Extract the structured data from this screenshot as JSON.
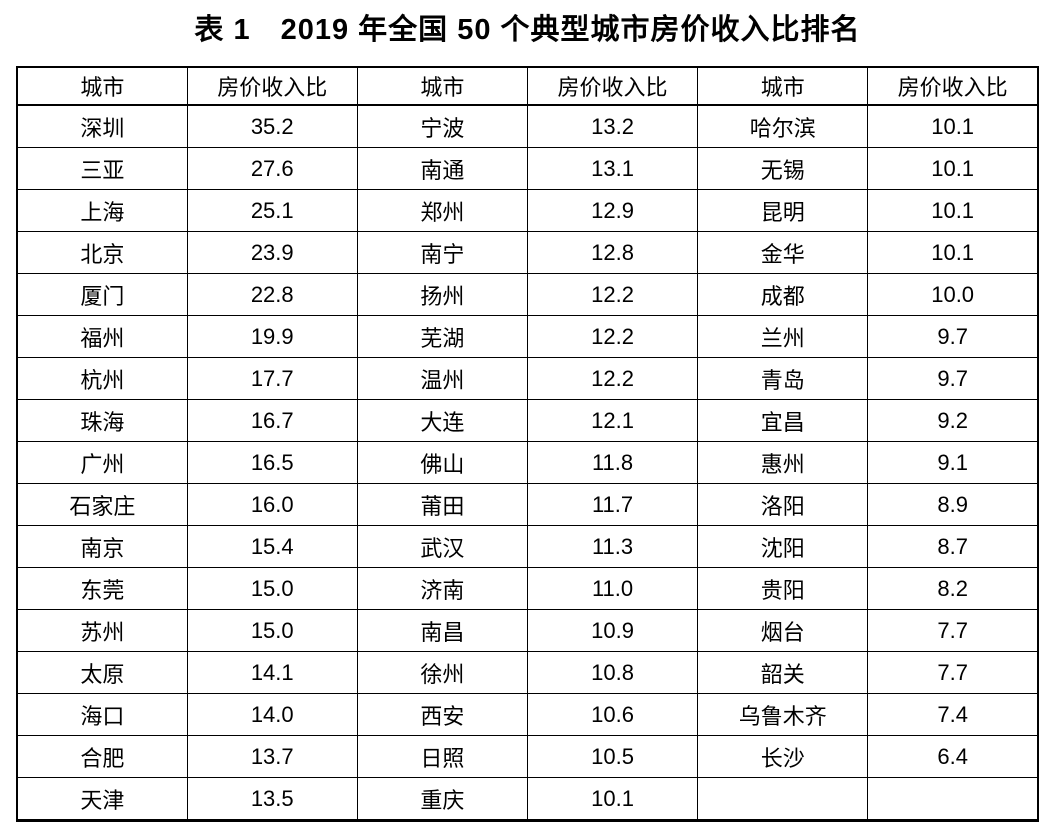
{
  "page": {
    "title": "表 1　2019 年全国 50 个典型城市房价收入比排名"
  },
  "colors": {
    "text": "#000000",
    "background": "#ffffff",
    "border": "#000000"
  },
  "table": {
    "headers": [
      "城市",
      "房价收入比",
      "城市",
      "房价收入比",
      "城市",
      "房价收入比"
    ],
    "rows": [
      [
        "深圳",
        "35.2",
        "宁波",
        "13.2",
        "哈尔滨",
        "10.1"
      ],
      [
        "三亚",
        "27.6",
        "南通",
        "13.1",
        "无锡",
        "10.1"
      ],
      [
        "上海",
        "25.1",
        "郑州",
        "12.9",
        "昆明",
        "10.1"
      ],
      [
        "北京",
        "23.9",
        "南宁",
        "12.8",
        "金华",
        "10.1"
      ],
      [
        "厦门",
        "22.8",
        "扬州",
        "12.2",
        "成都",
        "10.0"
      ],
      [
        "福州",
        "19.9",
        "芜湖",
        "12.2",
        "兰州",
        "9.7"
      ],
      [
        "杭州",
        "17.7",
        "温州",
        "12.2",
        "青岛",
        "9.7"
      ],
      [
        "珠海",
        "16.7",
        "大连",
        "12.1",
        "宜昌",
        "9.2"
      ],
      [
        "广州",
        "16.5",
        "佛山",
        "11.8",
        "惠州",
        "9.1"
      ],
      [
        "石家庄",
        "16.0",
        "莆田",
        "11.7",
        "洛阳",
        "8.9"
      ],
      [
        "南京",
        "15.4",
        "武汉",
        "11.3",
        "沈阳",
        "8.7"
      ],
      [
        "东莞",
        "15.0",
        "济南",
        "11.0",
        "贵阳",
        "8.2"
      ],
      [
        "苏州",
        "15.0",
        "南昌",
        "10.9",
        "烟台",
        "7.7"
      ],
      [
        "太原",
        "14.1",
        "徐州",
        "10.8",
        "韶关",
        "7.7"
      ],
      [
        "海口",
        "14.0",
        "西安",
        "10.6",
        "乌鲁木齐",
        "7.4"
      ],
      [
        "合肥",
        "13.7",
        "日照",
        "10.5",
        "长沙",
        "6.4"
      ],
      [
        "天津",
        "13.5",
        "重庆",
        "10.1",
        "",
        ""
      ]
    ]
  },
  "chart_data": {
    "type": "table",
    "title": "表 1　2019 年全国 50 个典型城市房价收入比排名",
    "columns": [
      "城市",
      "房价收入比"
    ],
    "records": [
      {
        "城市": "深圳",
        "房价收入比": 35.2
      },
      {
        "城市": "三亚",
        "房价收入比": 27.6
      },
      {
        "城市": "上海",
        "房价收入比": 25.1
      },
      {
        "城市": "北京",
        "房价收入比": 23.9
      },
      {
        "城市": "厦门",
        "房价收入比": 22.8
      },
      {
        "城市": "福州",
        "房价收入比": 19.9
      },
      {
        "城市": "杭州",
        "房价收入比": 17.7
      },
      {
        "城市": "珠海",
        "房价收入比": 16.7
      },
      {
        "城市": "广州",
        "房价收入比": 16.5
      },
      {
        "城市": "石家庄",
        "房价收入比": 16.0
      },
      {
        "城市": "南京",
        "房价收入比": 15.4
      },
      {
        "城市": "东莞",
        "房价收入比": 15.0
      },
      {
        "城市": "苏州",
        "房价收入比": 15.0
      },
      {
        "城市": "太原",
        "房价收入比": 14.1
      },
      {
        "城市": "海口",
        "房价收入比": 14.0
      },
      {
        "城市": "合肥",
        "房价收入比": 13.7
      },
      {
        "城市": "天津",
        "房价收入比": 13.5
      },
      {
        "城市": "宁波",
        "房价收入比": 13.2
      },
      {
        "城市": "南通",
        "房价收入比": 13.1
      },
      {
        "城市": "郑州",
        "房价收入比": 12.9
      },
      {
        "城市": "南宁",
        "房价收入比": 12.8
      },
      {
        "城市": "扬州",
        "房价收入比": 12.2
      },
      {
        "城市": "芜湖",
        "房价收入比": 12.2
      },
      {
        "城市": "温州",
        "房价收入比": 12.2
      },
      {
        "城市": "大连",
        "房价收入比": 12.1
      },
      {
        "城市": "佛山",
        "房价收入比": 11.8
      },
      {
        "城市": "莆田",
        "房价收入比": 11.7
      },
      {
        "城市": "武汉",
        "房价收入比": 11.3
      },
      {
        "城市": "济南",
        "房价收入比": 11.0
      },
      {
        "城市": "南昌",
        "房价收入比": 10.9
      },
      {
        "城市": "徐州",
        "房价收入比": 10.8
      },
      {
        "城市": "西安",
        "房价收入比": 10.6
      },
      {
        "城市": "日照",
        "房价收入比": 10.5
      },
      {
        "城市": "重庆",
        "房价收入比": 10.1
      },
      {
        "城市": "哈尔滨",
        "房价收入比": 10.1
      },
      {
        "城市": "无锡",
        "房价收入比": 10.1
      },
      {
        "城市": "昆明",
        "房价收入比": 10.1
      },
      {
        "城市": "金华",
        "房价收入比": 10.1
      },
      {
        "城市": "成都",
        "房价收入比": 10.0
      },
      {
        "城市": "兰州",
        "房价收入比": 9.7
      },
      {
        "城市": "青岛",
        "房价收入比": 9.7
      },
      {
        "城市": "宜昌",
        "房价收入比": 9.2
      },
      {
        "城市": "惠州",
        "房价收入比": 9.1
      },
      {
        "城市": "洛阳",
        "房价收入比": 8.9
      },
      {
        "城市": "沈阳",
        "房价收入比": 8.7
      },
      {
        "城市": "贵阳",
        "房价收入比": 8.2
      },
      {
        "城市": "烟台",
        "房价收入比": 7.7
      },
      {
        "城市": "韶关",
        "房价收入比": 7.7
      },
      {
        "城市": "乌鲁木齐",
        "房价收入比": 7.4
      },
      {
        "城市": "长沙",
        "房价收入比": 6.4
      }
    ]
  }
}
